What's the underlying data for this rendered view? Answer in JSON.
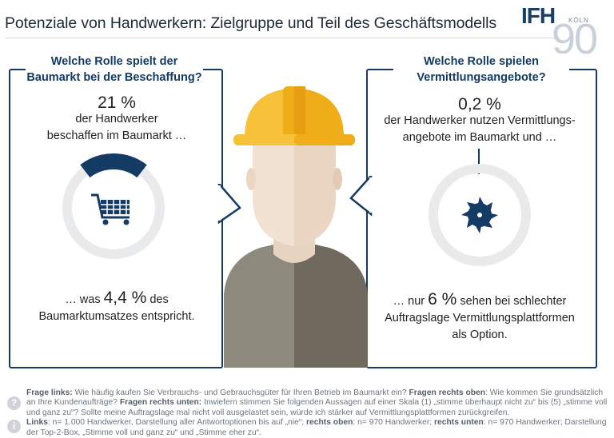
{
  "header": {
    "title": "Potenziale von Handwerkern: Zielgruppe und Teil des Geschäftsmodells",
    "logo": {
      "brand": "IFH",
      "city": "KÖLN",
      "number": "90"
    }
  },
  "left_panel": {
    "question": [
      "Welche Rolle spielt der",
      "Baumarkt bei der Beschaffung?"
    ],
    "stat_value": "21 %",
    "stat_text": [
      "der Handwerker",
      "beschaffen im Baumarkt …"
    ],
    "donut_share": 0.21,
    "icon": "shopping-cart-icon",
    "result_prefix": "… was",
    "result_value": "4,4 %",
    "result_suffix": "des",
    "result_line2": "Baumarktumsatzes entspricht."
  },
  "right_panel": {
    "question": [
      "Welche Rolle spielen",
      "Vermittlungsangebote?"
    ],
    "stat_value": "0,2 %",
    "stat_text": [
      "der Handwerker nutzen Vermittlungs-",
      "angebote im Baumarkt und …"
    ],
    "icon": "saw-blade-icon",
    "result_prefix": "… nur",
    "result_value": "6 %",
    "result_suffix": "sehen bei schlechter",
    "result_line2": "Auftragslage Vermittlungsplattformen",
    "result_line3": "als Option."
  },
  "footer": {
    "q_left_label": "Frage links:",
    "q_left": "Wie häufig kaufen Sie Verbrauchs- und Gebrauchsgüter für Ihren Betrieb im Baumarkt ein?",
    "q_right_top_label": "Fragen rechts oben",
    "q_right_top": ": Wie kommen Sie grundsätzlich an Ihre Kundenaufträge?",
    "q_right_bottom_label": "Fragen rechts unten:",
    "q_right_bottom": "Inwiefern stimmen Sie folgenden Aussagen auf einer Skala (1) „stimme überhaupt nicht zu“ bis (5) „stimme voll und ganz zu“? Sollte meine Auftragslage mal nicht voll ausgelastet sein, würde ich stärker auf Vermittlungsplattformen zurückgreifen.",
    "links_label": "Links",
    "links": ": n= 1.000 Handwerker, Darstellung aller Antwortoptionen bis auf „nie“;",
    "right_top_label": "rechts oben",
    "right_top": ": n= 970 Handwerker;",
    "right_bottom_label": "rechts unten",
    "right_bottom": ": n= 970 Handwerker; Darstellung der Top-2-Box, „Stimme voll und ganz zu“ und „Stimme eher zu“.",
    "question_icon": "?",
    "info_icon": "i"
  },
  "colors": {
    "navy": "#143b63",
    "helmet": "#f7c23a",
    "helmet_dark": "#f0ad1a",
    "skin": "#f1e2d3",
    "shirt_left": "#8d8a7d",
    "shirt_right": "#6f6a5d",
    "donut_bg": "#e9eaeb"
  }
}
